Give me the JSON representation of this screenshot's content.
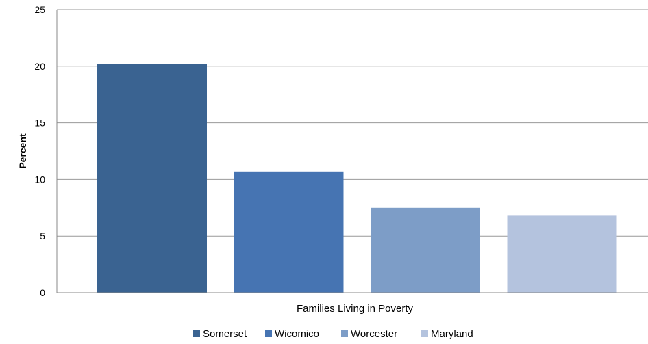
{
  "chart_data": {
    "type": "bar",
    "title": "",
    "xlabel": "",
    "ylabel": "Percent",
    "categories": [
      "Families Living in Poverty"
    ],
    "series": [
      {
        "name": "Somerset",
        "values": [
          20.2
        ],
        "color": "#3a6391"
      },
      {
        "name": "Wicomico",
        "values": [
          10.7
        ],
        "color": "#4674b2"
      },
      {
        "name": "Worcester",
        "values": [
          7.5
        ],
        "color": "#7d9dc7"
      },
      {
        "name": "Maryland",
        "values": [
          6.8
        ],
        "color": "#b4c3de"
      }
    ],
    "ylim": [
      0,
      25
    ],
    "yticks": [
      "0",
      "5",
      "10",
      "15",
      "20",
      "25"
    ],
    "grid": true,
    "legend_position": "bottom"
  }
}
